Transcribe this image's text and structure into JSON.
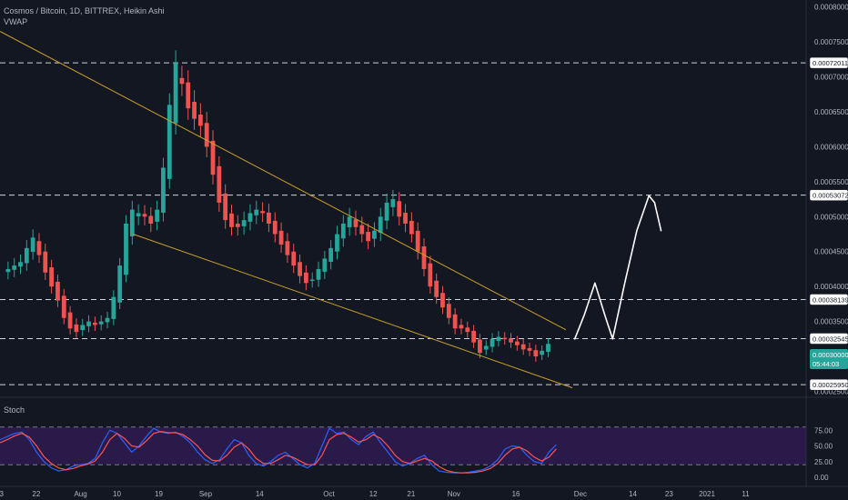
{
  "chart_data": {
    "type": "candlestick",
    "title": "Cosmos / Bitcoin, 1D, BITTREX, Heikin Ashi",
    "indicator_label": "VWAP",
    "oscillator_label": "Stoch",
    "time_axis": [
      "3",
      "22",
      "Aug",
      "10",
      "19",
      "Sep",
      "14",
      "Oct",
      "12",
      "21",
      "Nov",
      "16",
      "Dec",
      "14",
      "23",
      "2021",
      "11"
    ],
    "price_axis": [
      "0.00080000",
      "0.00075000",
      "0.00070000",
      "0.00065000",
      "0.00060000",
      "0.00055000",
      "0.00050000",
      "0.00045000",
      "0.00040000",
      "0.00035000",
      "0.00030000",
      "0.00025000"
    ],
    "price_labels": [
      {
        "value": "0.00072011",
        "kind": "level"
      },
      {
        "value": "0.00053072",
        "kind": "level"
      },
      {
        "value": "0.00038139",
        "kind": "level"
      },
      {
        "value": "0.00032545",
        "kind": "level"
      },
      {
        "value": "0.00025950",
        "kind": "level"
      },
      {
        "value": "0.00030000",
        "kind": "current"
      },
      {
        "value": "05:44:03",
        "kind": "countdown"
      }
    ],
    "levels": [
      0.00072011,
      0.00053072,
      0.00038139,
      0.00032545,
      0.0002595
    ],
    "ylim": [
      0.0002415,
      0.00081
    ],
    "stoch_axis": [
      "75.00",
      "50.00",
      "25.00",
      "0.00"
    ],
    "stoch_bands": [
      80,
      20
    ],
    "colors": {
      "up": "#26a69a",
      "down": "#ef5350",
      "trend": "#c8a02a",
      "level": "#d1d4dc",
      "stoch_k": "#2962ff",
      "stoch_d": "#ff5252",
      "stoch_band": "#2a1a4a",
      "current_badge": "#26a69a"
    },
    "trendlines": [
      {
        "from": [
          0.0002,
          0.000765
        ],
        "to": [
          0.702,
          0.000338
        ]
      },
      {
        "from": [
          0.165,
          0.000475
        ],
        "to": [
          0.71,
          0.000255
        ]
      }
    ],
    "projection_points": [
      [
        0.713,
        0.000325
      ],
      [
        0.725,
        0.00036
      ],
      [
        0.738,
        0.000405
      ],
      [
        0.75,
        0.00036
      ],
      [
        0.76,
        0.000325
      ],
      [
        0.775,
        0.000405
      ],
      [
        0.79,
        0.00048
      ],
      [
        0.805,
        0.00053
      ],
      [
        0.812,
        0.00052
      ],
      [
        0.82,
        0.00048
      ]
    ],
    "candles_close": [
      0.000425,
      0.00043,
      0.000435,
      0.000455,
      0.00047,
      0.000445,
      0.00042,
      0.0004,
      0.00038,
      0.000355,
      0.00034,
      0.000335,
      0.000345,
      0.00035,
      0.000345,
      0.00035,
      0.000355,
      0.000385,
      0.00043,
      0.00049,
      0.00051,
      0.000505,
      0.0005,
      0.00049,
      0.00051,
      0.00057,
      0.00066,
      0.00072,
      0.00069,
      0.000655,
      0.00064,
      0.00063,
      0.0006,
      0.00056,
      0.00052,
      0.000495,
      0.000485,
      0.000485,
      0.000495,
      0.000505,
      0.00051,
      0.000505,
      0.00049,
      0.000475,
      0.00046,
      0.000445,
      0.00043,
      0.000415,
      0.000405,
      0.00041,
      0.000425,
      0.00044,
      0.000455,
      0.000475,
      0.00049,
      0.0005,
      0.000485,
      0.000475,
      0.000465,
      0.00048,
      0.0005,
      0.00052,
      0.000525,
      0.0005,
      0.00049,
      0.000475,
      0.00045,
      0.000425,
      0.0004,
      0.000385,
      0.00037,
      0.000355,
      0.00034,
      0.00034,
      0.000335,
      0.00032,
      0.000305,
      0.000315,
      0.000325,
      0.000328,
      0.000325,
      0.00032,
      0.000316,
      0.00031,
      0.000308,
      0.0003,
      0.000308,
      0.000318
    ],
    "stoch_k": [
      60,
      65,
      70,
      72,
      60,
      40,
      25,
      15,
      10,
      12,
      18,
      20,
      22,
      30,
      55,
      75,
      70,
      55,
      40,
      50,
      65,
      78,
      72,
      70,
      72,
      65,
      55,
      40,
      28,
      22,
      28,
      45,
      60,
      55,
      35,
      22,
      18,
      25,
      35,
      40,
      30,
      20,
      15,
      22,
      50,
      78,
      70,
      72,
      60,
      52,
      65,
      72,
      55,
      40,
      25,
      18,
      22,
      30,
      35,
      20,
      10,
      8,
      7,
      7,
      8,
      10,
      12,
      18,
      28,
      45,
      50,
      48,
      35,
      25,
      22,
      40,
      52
    ],
    "stoch_d": [
      55,
      60,
      66,
      70,
      64,
      50,
      33,
      22,
      15,
      12,
      14,
      18,
      21,
      26,
      40,
      60,
      70,
      62,
      50,
      48,
      58,
      70,
      73,
      71,
      71,
      68,
      60,
      50,
      36,
      27,
      26,
      35,
      48,
      55,
      45,
      30,
      22,
      22,
      28,
      35,
      32,
      26,
      20,
      20,
      35,
      60,
      68,
      70,
      64,
      56,
      60,
      68,
      62,
      50,
      35,
      25,
      22,
      26,
      30,
      26,
      17,
      11,
      8,
      7,
      7,
      8,
      10,
      14,
      22,
      35,
      45,
      48,
      42,
      32,
      26,
      32,
      45
    ]
  }
}
